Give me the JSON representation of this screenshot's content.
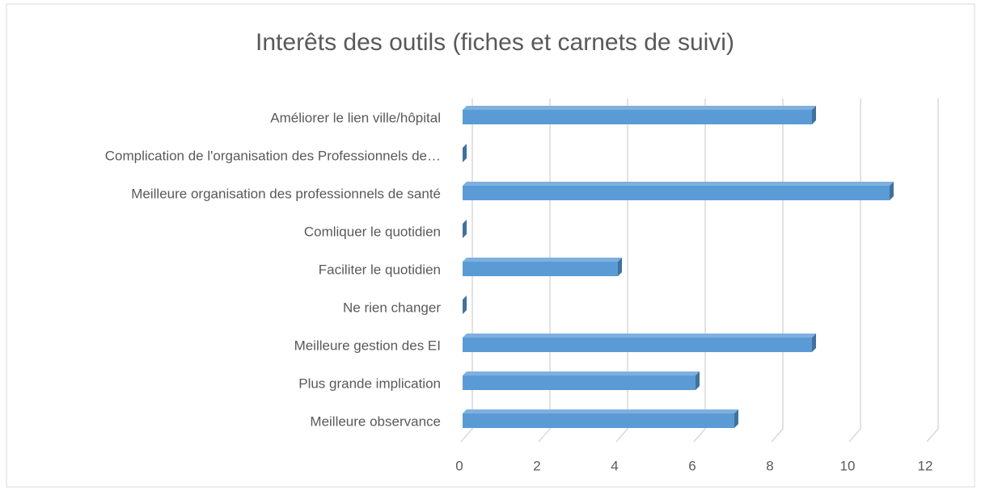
{
  "chart_data": {
    "type": "bar",
    "orientation": "horizontal",
    "title": "Interêts des outils (fiches et carnets de suivi)",
    "categories": [
      "Améliorer le lien ville/hôpital",
      "Complication de l'organisation des Professionnels de…",
      "Meilleure organisation des professionnels de santé",
      "Comliquer le quotidien",
      "Faciliter le quotidien",
      "Ne rien changer",
      "Meilleure gestion des EI",
      "Plus grande implication",
      "Meilleure observance"
    ],
    "values": [
      9,
      0,
      11,
      0,
      4,
      0,
      9,
      6,
      7
    ],
    "color": "#5b9bd5",
    "xlim": [
      0,
      12
    ],
    "xticks": [
      0,
      2,
      4,
      6,
      8,
      10,
      12
    ],
    "grid": true
  }
}
